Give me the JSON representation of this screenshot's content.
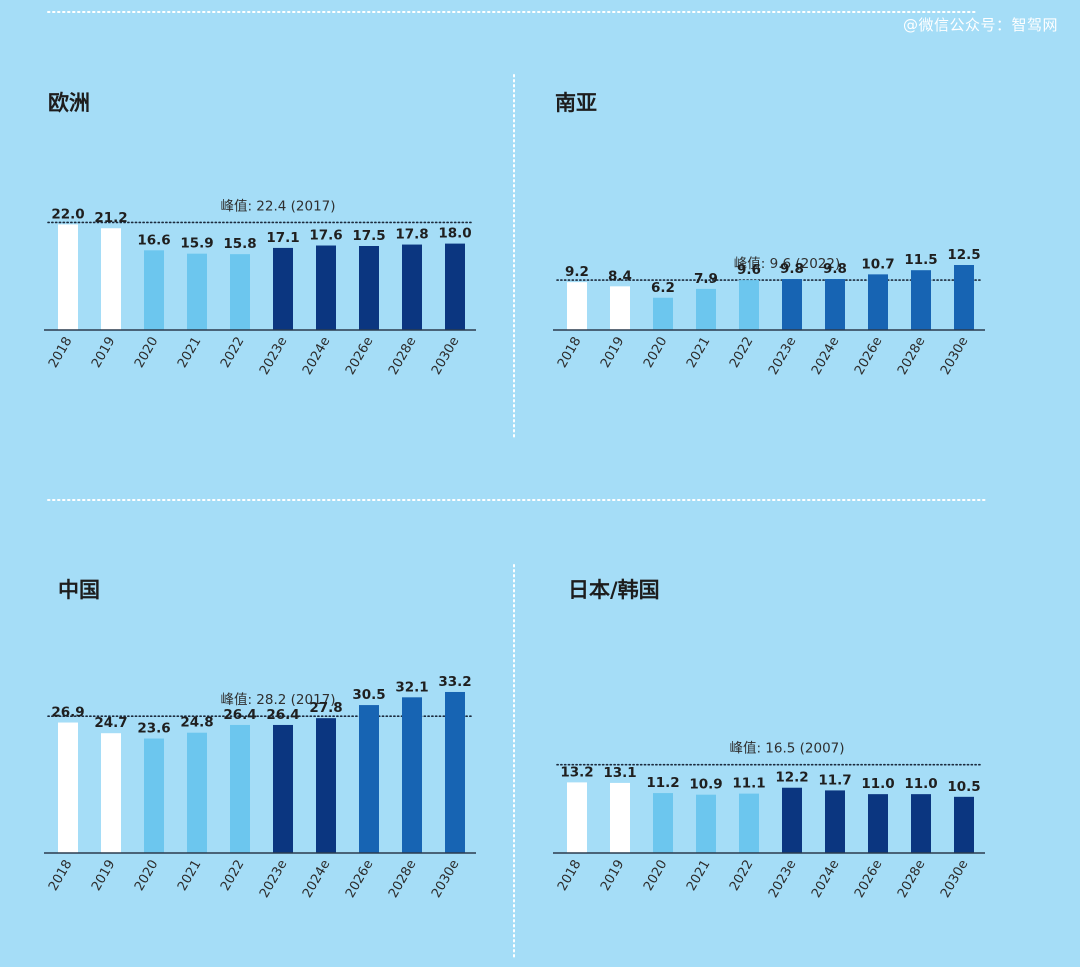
{
  "watermark": "@微信公众号：智驾网",
  "colors": {
    "background": "#a5ddf7",
    "white": "#ffffff",
    "light_blue": "#6cc6ee",
    "dark_navy": "#0b3680",
    "medium_blue": "#1764b3"
  },
  "chart_data": [
    {
      "type": "bar",
      "title": "欧洲",
      "categories": [
        "2018",
        "2019",
        "2020",
        "2021",
        "2022",
        "2023e",
        "2024e",
        "2026e",
        "2028e",
        "2030e"
      ],
      "values": [
        22.0,
        21.2,
        16.6,
        15.9,
        15.8,
        17.1,
        17.6,
        17.5,
        17.8,
        18.0
      ],
      "value_labels": [
        "22.0",
        "21.2",
        "16.6",
        "15.9",
        "15.8",
        "17.1",
        "17.6",
        "17.5",
        "17.8",
        "18.0"
      ],
      "bar_colors": [
        "white",
        "white",
        "light_blue",
        "light_blue",
        "light_blue",
        "dark_navy",
        "dark_navy",
        "dark_navy",
        "dark_navy",
        "dark_navy"
      ],
      "peak": {
        "value": 22.4,
        "label": "峰值: 22.4 (2017)"
      }
    },
    {
      "type": "bar",
      "title": "南亚",
      "categories": [
        "2018",
        "2019",
        "2020",
        "2021",
        "2022",
        "2023e",
        "2024e",
        "2026e",
        "2028e",
        "2030e"
      ],
      "values": [
        9.2,
        8.4,
        6.2,
        7.9,
        9.6,
        9.8,
        9.8,
        10.7,
        11.5,
        12.5
      ],
      "value_labels": [
        "9.2",
        "8.4",
        "6.2",
        "7.9",
        "9.6",
        "9.8",
        "9.8",
        "10.7",
        "11.5",
        "12.5"
      ],
      "bar_colors": [
        "white",
        "white",
        "light_blue",
        "light_blue",
        "light_blue",
        "medium_blue",
        "medium_blue",
        "medium_blue",
        "medium_blue",
        "medium_blue"
      ],
      "peak": {
        "value": 9.6,
        "label": "峰值: 9.6 (2022)"
      }
    },
    {
      "type": "bar",
      "title": "中国",
      "categories": [
        "2018",
        "2019",
        "2020",
        "2021",
        "2022",
        "2023e",
        "2024e",
        "2026e",
        "2028e",
        "2030e"
      ],
      "values": [
        26.9,
        24.7,
        23.6,
        24.8,
        26.4,
        26.4,
        27.8,
        30.5,
        32.1,
        33.2
      ],
      "value_labels": [
        "26.9",
        "24.7",
        "23.6",
        "24.8",
        "26.4",
        "26.4",
        "27.8",
        "30.5",
        "32.1",
        "33.2"
      ],
      "bar_colors": [
        "white",
        "white",
        "light_blue",
        "light_blue",
        "light_blue",
        "dark_navy",
        "dark_navy",
        "medium_blue",
        "medium_blue",
        "medium_blue"
      ],
      "peak": {
        "value": 28.2,
        "label": "峰值: 28.2 (2017)"
      }
    },
    {
      "type": "bar",
      "title": "日本/韩国",
      "categories": [
        "2018",
        "2019",
        "2020",
        "2021",
        "2022",
        "2023e",
        "2024e",
        "2026e",
        "2028e",
        "2030e"
      ],
      "values": [
        13.2,
        13.1,
        11.2,
        10.9,
        11.1,
        12.2,
        11.7,
        11.0,
        11.0,
        10.5
      ],
      "value_labels": [
        "13.2",
        "13.1",
        "11.2",
        "10.9",
        "11.1",
        "12.2",
        "11.7",
        "11.0",
        "11.0",
        "10.5"
      ],
      "bar_colors": [
        "white",
        "white",
        "light_blue",
        "light_blue",
        "light_blue",
        "dark_navy",
        "dark_navy",
        "dark_navy",
        "dark_navy",
        "dark_navy"
      ],
      "peak": {
        "value": 16.5,
        "label": "峰值: 16.5 (2007)"
      }
    }
  ]
}
